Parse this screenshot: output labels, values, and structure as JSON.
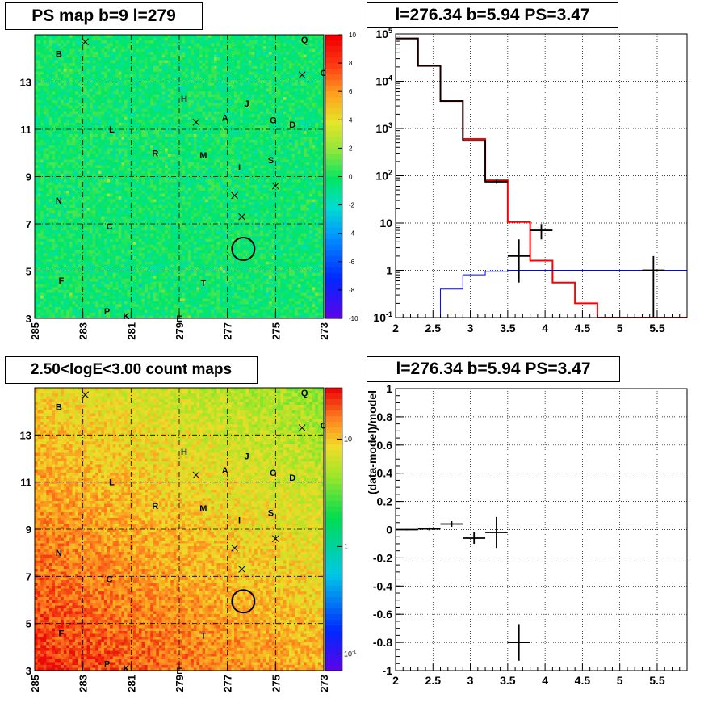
{
  "panels": {
    "tl": {
      "title": "PS map b=9 l=279"
    },
    "tr": {
      "title": "l=276.34 b=5.94 PS=3.47"
    },
    "bl": {
      "title": "2.50<logE<3.00 count maps"
    },
    "br": {
      "title": "l=276.34 b=5.94 PS=3.47"
    }
  },
  "chart_data": [
    {
      "type": "heatmap",
      "id": "ps-map",
      "title": "PS map b=9 l=279",
      "xlim": [
        285,
        273
      ],
      "ylim": [
        3,
        15
      ],
      "x_ticks": [
        285,
        283,
        281,
        279,
        277,
        275,
        273
      ],
      "y_ticks": [
        3,
        5,
        7,
        9,
        11,
        13
      ],
      "colorbar": {
        "min": -10,
        "max": 10,
        "ticks": [
          -10,
          -8,
          -6,
          -4,
          -2,
          0,
          2,
          4,
          6,
          8,
          10
        ]
      },
      "grid": true,
      "source_labels": [
        {
          "text": "B",
          "l": 284.0,
          "b": 14.2
        },
        {
          "text": "Q",
          "l": 273.8,
          "b": 14.8
        },
        {
          "text": "O",
          "l": 273.0,
          "b": 13.4
        },
        {
          "text": "H",
          "l": 278.8,
          "b": 12.3
        },
        {
          "text": "J",
          "l": 276.2,
          "b": 12.1
        },
        {
          "text": "A",
          "l": 277.1,
          "b": 11.5
        },
        {
          "text": "G",
          "l": 275.1,
          "b": 11.4
        },
        {
          "text": "D",
          "l": 274.3,
          "b": 11.2
        },
        {
          "text": "L",
          "l": 281.8,
          "b": 11.0
        },
        {
          "text": "R",
          "l": 280.0,
          "b": 10.0
        },
        {
          "text": "M",
          "l": 278.0,
          "b": 9.9
        },
        {
          "text": "S",
          "l": 275.2,
          "b": 9.7
        },
        {
          "text": "I",
          "l": 276.5,
          "b": 9.4
        },
        {
          "text": "N",
          "l": 284.0,
          "b": 8.0
        },
        {
          "text": "C",
          "l": 281.9,
          "b": 6.9
        },
        {
          "text": "F",
          "l": 283.9,
          "b": 4.6
        },
        {
          "text": "T",
          "l": 278.0,
          "b": 4.5
        },
        {
          "text": "P",
          "l": 282.0,
          "b": 3.3
        },
        {
          "text": "K",
          "l": 281.2,
          "b": 3.1
        },
        {
          "text": "E",
          "l": 279.0,
          "b": 3.0
        }
      ],
      "markers_x": [
        {
          "l": 282.9,
          "b": 14.7
        },
        {
          "l": 273.9,
          "b": 13.3
        },
        {
          "l": 278.3,
          "b": 11.3
        },
        {
          "l": 275.0,
          "b": 8.6
        },
        {
          "l": 276.7,
          "b": 8.2
        },
        {
          "l": 276.4,
          "b": 7.3
        }
      ],
      "circle": {
        "l": 276.34,
        "b": 5.94
      }
    },
    {
      "type": "line",
      "id": "spectrum",
      "title": "l=276.34 b=5.94 PS=3.47",
      "xlim": [
        2,
        5.9
      ],
      "ylim": [
        0.1,
        100000
      ],
      "log_y": true,
      "x_ticks": [
        2,
        2.5,
        3,
        3.5,
        4,
        4.5,
        5,
        5.5
      ],
      "y_ticks": [
        0.1,
        1,
        10,
        100,
        1000,
        10000,
        100000
      ],
      "y_tick_labels": [
        "10^-1",
        "1",
        "10",
        "10^2",
        "10^3",
        "10^4",
        "10^5"
      ],
      "grid": true,
      "series": [
        {
          "color": "#ff0000",
          "edges": [
            2,
            2.3,
            2.6,
            2.9,
            3.2,
            3.5,
            3.8,
            4.1,
            4.4,
            4.7,
            5.0,
            5.9
          ],
          "values": [
            80000,
            21000,
            3800,
            600,
            80,
            10.5,
            1.6,
            0.55,
            0.2,
            0.1,
            0.1
          ]
        },
        {
          "color": "#0000ff",
          "edges": [
            2,
            2.6,
            2.9,
            3.2,
            3.5,
            5.9
          ],
          "values": [
            0.1,
            0.4,
            0.8,
            0.95,
            1.0
          ]
        },
        {
          "color": "#000000",
          "edges": [
            2,
            2.3,
            2.6,
            2.9,
            3.2,
            3.5,
            3.8,
            4.1,
            4.4,
            4.7,
            5.0,
            5.9
          ],
          "values": [
            80000,
            21000,
            3800,
            550,
            75,
            null,
            null,
            null,
            null,
            null,
            null
          ]
        }
      ],
      "points": [
        {
          "x": 3.35,
          "y": 75,
          "xerr": 0.15,
          "ylo": 68,
          "yhi": 82
        },
        {
          "x": 3.65,
          "y": 2,
          "xerr": 0.15,
          "ylo": 0.55,
          "yhi": 4.5
        },
        {
          "x": 3.95,
          "y": 7,
          "xerr": 0.15,
          "ylo": 4.5,
          "yhi": 9.5
        },
        {
          "x": 5.45,
          "y": 1,
          "xerr": 0.15,
          "ylo": 0.1,
          "yhi": 2
        }
      ]
    },
    {
      "type": "heatmap",
      "id": "count-map",
      "title": "2.50<logE<3.00 count maps",
      "xlim": [
        285,
        273
      ],
      "ylim": [
        3,
        15
      ],
      "x_ticks": [
        285,
        283,
        281,
        279,
        277,
        275,
        273
      ],
      "y_ticks": [
        3,
        5,
        7,
        9,
        11,
        13
      ],
      "colorbar": {
        "log": true,
        "min": 0.07,
        "max": 30,
        "ticks": [
          0.1,
          1,
          10
        ],
        "tick_labels": [
          "10^-1",
          "1",
          "10"
        ]
      },
      "grid": true
    },
    {
      "type": "scatter",
      "id": "residual",
      "title": "l=276.34 b=5.94 PS=3.47",
      "ylabel": "(data-model)/model",
      "xlim": [
        2,
        5.9
      ],
      "ylim": [
        -1,
        1
      ],
      "x_ticks": [
        2,
        2.5,
        3,
        3.5,
        4,
        4.5,
        5,
        5.5
      ],
      "y_ticks": [
        -1,
        -0.8,
        -0.6,
        -0.4,
        -0.2,
        0,
        0.2,
        0.4,
        0.6,
        0.8,
        1
      ],
      "grid": true,
      "points": [
        {
          "x": 2.15,
          "y": 0.0,
          "xerr": 0.15,
          "yerr": 0.005
        },
        {
          "x": 2.45,
          "y": 0.005,
          "xerr": 0.15,
          "yerr": 0.01
        },
        {
          "x": 2.75,
          "y": 0.04,
          "xerr": 0.15,
          "yerr": 0.02
        },
        {
          "x": 3.05,
          "y": -0.06,
          "xerr": 0.15,
          "yerr": 0.04
        },
        {
          "x": 3.35,
          "y": -0.02,
          "xerr": 0.15,
          "yerr": 0.11
        },
        {
          "x": 3.65,
          "y": -0.8,
          "xerr": 0.15,
          "yerr": 0.13
        }
      ]
    }
  ]
}
